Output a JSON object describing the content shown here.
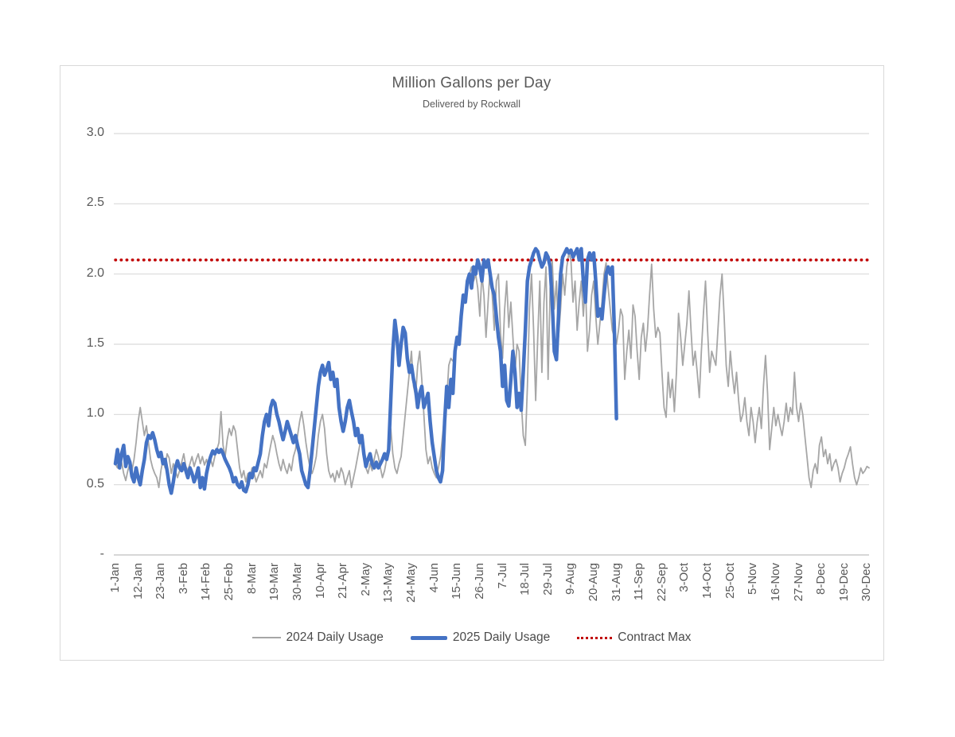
{
  "chart_data": {
    "type": "line",
    "title": "Million Gallons per Day",
    "subtitle": "Delivered by Rockwall",
    "x_unit": "day_of_year",
    "x_range_days": [
      1,
      365
    ],
    "ylim": [
      0,
      3.0
    ],
    "grid": "horizontal",
    "legend_position": "bottom",
    "style": {
      "text_color": "#595959",
      "grid_color": "#D9D9D9",
      "axis_color": "#BFBFBF",
      "frame_border": "#D9D9D9",
      "legend_text": "#4a4a4a"
    },
    "ytick_labels": [
      "3.0",
      "2.5",
      "2.0",
      "1.5",
      "1.0",
      "0.5",
      "-"
    ],
    "ytick_values": [
      3.0,
      2.5,
      2.0,
      1.5,
      1.0,
      0.5,
      0
    ],
    "xtick_labels": [
      "1-Jan",
      "12-Jan",
      "23-Jan",
      "3-Feb",
      "14-Feb",
      "25-Feb",
      "8-Mar",
      "19-Mar",
      "30-Mar",
      "10-Apr",
      "21-Apr",
      "2-May",
      "13-May",
      "24-May",
      "4-Jun",
      "15-Jun",
      "26-Jun",
      "7-Jul",
      "18-Jul",
      "29-Jul",
      "9-Aug",
      "20-Aug",
      "31-Aug",
      "11-Sep",
      "22-Sep",
      "3-Oct",
      "14-Oct",
      "25-Oct",
      "5-Nov",
      "16-Nov",
      "27-Nov",
      "8-Dec",
      "19-Dec",
      "30-Dec"
    ],
    "xtick_days": [
      1,
      12,
      23,
      34,
      45,
      56,
      67,
      78,
      89,
      100,
      111,
      122,
      133,
      144,
      155,
      166,
      177,
      188,
      199,
      210,
      221,
      232,
      243,
      254,
      265,
      276,
      287,
      298,
      309,
      320,
      331,
      342,
      353,
      364
    ],
    "contract_max": {
      "name": "Contract Max",
      "value": 2.1,
      "color": "#C00000",
      "style": "dotted"
    },
    "series": [
      {
        "name": "2024 Daily Usage",
        "color": "#A6A6A6",
        "stroke_width": 1.8,
        "start_day": 1,
        "values": [
          0.65,
          0.62,
          0.7,
          0.66,
          0.58,
          0.53,
          0.6,
          0.65,
          0.6,
          0.68,
          0.8,
          0.95,
          1.05,
          0.95,
          0.85,
          0.92,
          0.8,
          0.68,
          0.62,
          0.58,
          0.55,
          0.48,
          0.6,
          0.68,
          0.62,
          0.72,
          0.69,
          0.58,
          0.65,
          0.6,
          0.55,
          0.6,
          0.66,
          0.72,
          0.63,
          0.6,
          0.65,
          0.7,
          0.63,
          0.68,
          0.72,
          0.65,
          0.7,
          0.64,
          0.68,
          0.62,
          0.68,
          0.63,
          0.7,
          0.75,
          0.8,
          1.02,
          0.78,
          0.7,
          0.82,
          0.9,
          0.85,
          0.92,
          0.88,
          0.75,
          0.62,
          0.55,
          0.6,
          0.52,
          0.58,
          0.55,
          0.62,
          0.58,
          0.52,
          0.56,
          0.6,
          0.55,
          0.65,
          0.62,
          0.7,
          0.78,
          0.85,
          0.8,
          0.72,
          0.65,
          0.6,
          0.68,
          0.62,
          0.58,
          0.65,
          0.6,
          0.7,
          0.75,
          0.85,
          0.95,
          1.02,
          0.92,
          0.8,
          0.7,
          0.62,
          0.58,
          0.63,
          0.7,
          0.85,
          0.95,
          1.0,
          0.9,
          0.72,
          0.6,
          0.55,
          0.58,
          0.52,
          0.6,
          0.55,
          0.62,
          0.58,
          0.5,
          0.55,
          0.6,
          0.48,
          0.55,
          0.62,
          0.7,
          0.78,
          0.84,
          0.75,
          0.62,
          0.58,
          0.65,
          0.6,
          0.68,
          0.75,
          0.7,
          0.62,
          0.55,
          0.6,
          0.68,
          0.78,
          0.9,
          0.72,
          0.62,
          0.58,
          0.65,
          0.7,
          0.85,
          1.0,
          1.15,
          1.3,
          1.45,
          1.2,
          1.13,
          1.35,
          1.45,
          1.25,
          1.0,
          0.75,
          0.65,
          0.7,
          0.62,
          0.58,
          0.55,
          0.62,
          0.7,
          0.85,
          1.0,
          1.1,
          1.35,
          1.4,
          1.38,
          1.42,
          1.5,
          1.6,
          1.75,
          1.85,
          1.8,
          1.95,
          2.0,
          2.05,
          1.95,
          2.0,
          1.9,
          1.7,
          2.0,
          1.85,
          1.55,
          1.8,
          2.05,
          1.85,
          1.6,
          1.95,
          2.0,
          1.58,
          1.4,
          1.75,
          1.95,
          1.62,
          1.8,
          1.55,
          1.3,
          1.5,
          1.45,
          1.1,
          0.85,
          0.78,
          1.2,
          1.75,
          2.0,
          1.6,
          1.1,
          1.55,
          1.95,
          1.3,
          1.8,
          2.05,
          1.25,
          1.9,
          2.1,
          1.75,
          1.95,
          1.55,
          1.75,
          2.0,
          1.85,
          2.05,
          2.15,
          2.1,
          1.8,
          1.95,
          1.6,
          1.8,
          1.95,
          1.7,
          1.95,
          1.45,
          1.6,
          1.85,
          1.95,
          1.7,
          1.5,
          1.65,
          1.8,
          2.0,
          2.08,
          1.9,
          1.75,
          1.6,
          1.55,
          1.5,
          1.6,
          1.75,
          1.7,
          1.25,
          1.45,
          1.6,
          1.4,
          1.78,
          1.7,
          1.45,
          1.25,
          1.55,
          1.65,
          1.45,
          1.6,
          1.85,
          2.07,
          1.75,
          1.55,
          1.62,
          1.58,
          1.3,
          1.05,
          0.98,
          1.3,
          1.12,
          1.25,
          1.02,
          1.3,
          1.72,
          1.55,
          1.35,
          1.5,
          1.65,
          1.88,
          1.6,
          1.35,
          1.45,
          1.3,
          1.12,
          1.45,
          1.72,
          1.95,
          1.6,
          1.3,
          1.45,
          1.4,
          1.35,
          1.6,
          1.85,
          2.0,
          1.7,
          1.35,
          1.2,
          1.45,
          1.28,
          1.15,
          1.3,
          1.1,
          0.95,
          1.0,
          1.12,
          0.95,
          0.85,
          1.05,
          0.95,
          0.8,
          0.95,
          1.05,
          0.9,
          1.2,
          1.42,
          1.15,
          0.75,
          0.9,
          1.05,
          0.92,
          1.0,
          0.92,
          0.85,
          0.95,
          1.08,
          0.95,
          1.05,
          1.0,
          1.3,
          1.05,
          0.95,
          1.08,
          1.0,
          0.85,
          0.7,
          0.55,
          0.48,
          0.6,
          0.65,
          0.58,
          0.78,
          0.84,
          0.7,
          0.75,
          0.65,
          0.72,
          0.6,
          0.65,
          0.68,
          0.62,
          0.52,
          0.58,
          0.62,
          0.68,
          0.72,
          0.77,
          0.65,
          0.55,
          0.5,
          0.55,
          0.62,
          0.58,
          0.6,
          0.63,
          0.62
        ]
      },
      {
        "name": "2025 Daily Usage",
        "color": "#4472C4",
        "stroke_width": 4.5,
        "start_day": 1,
        "values": [
          0.65,
          0.75,
          0.62,
          0.72,
          0.78,
          0.63,
          0.7,
          0.66,
          0.56,
          0.52,
          0.62,
          0.55,
          0.5,
          0.6,
          0.68,
          0.8,
          0.85,
          0.83,
          0.87,
          0.82,
          0.75,
          0.7,
          0.73,
          0.65,
          0.68,
          0.6,
          0.5,
          0.44,
          0.52,
          0.62,
          0.67,
          0.62,
          0.6,
          0.65,
          0.6,
          0.55,
          0.62,
          0.58,
          0.52,
          0.56,
          0.62,
          0.48,
          0.55,
          0.47,
          0.58,
          0.65,
          0.7,
          0.74,
          0.72,
          0.75,
          0.73,
          0.75,
          0.72,
          0.68,
          0.65,
          0.62,
          0.58,
          0.52,
          0.55,
          0.5,
          0.48,
          0.52,
          0.46,
          0.45,
          0.5,
          0.58,
          0.55,
          0.62,
          0.6,
          0.66,
          0.72,
          0.85,
          0.95,
          1.0,
          0.92,
          1.05,
          1.1,
          1.08,
          1.0,
          0.95,
          0.88,
          0.82,
          0.88,
          0.95,
          0.9,
          0.85,
          0.8,
          0.85,
          0.78,
          0.72,
          0.6,
          0.55,
          0.5,
          0.48,
          0.6,
          0.75,
          0.9,
          1.05,
          1.2,
          1.3,
          1.35,
          1.28,
          1.32,
          1.37,
          1.25,
          1.3,
          1.2,
          1.25,
          1.05,
          0.95,
          0.88,
          0.95,
          1.05,
          1.1,
          1.02,
          0.95,
          0.85,
          0.9,
          0.8,
          0.85,
          0.72,
          0.63,
          0.68,
          0.72,
          0.65,
          0.62,
          0.66,
          0.62,
          0.65,
          0.68,
          0.72,
          0.68,
          0.75,
          1.1,
          1.45,
          1.67,
          1.55,
          1.35,
          1.5,
          1.62,
          1.58,
          1.4,
          1.3,
          1.35,
          1.25,
          1.18,
          1.05,
          1.15,
          1.2,
          1.05,
          1.1,
          1.15,
          0.95,
          0.8,
          0.7,
          0.6,
          0.55,
          0.52,
          0.6,
          0.95,
          1.2,
          1.05,
          1.25,
          1.15,
          1.45,
          1.55,
          1.5,
          1.7,
          1.85,
          1.8,
          1.95,
          2.0,
          1.9,
          2.05,
          2.0,
          2.1,
          2.05,
          1.95,
          2.1,
          2.05,
          2.1,
          2.0,
          1.9,
          1.85,
          1.7,
          1.55,
          1.45,
          1.2,
          1.35,
          1.1,
          1.06,
          1.25,
          1.45,
          1.3,
          1.05,
          1.15,
          1.03,
          1.3,
          1.6,
          1.95,
          2.05,
          2.1,
          2.15,
          2.18,
          2.16,
          2.1,
          2.05,
          2.08,
          2.15,
          2.12,
          2.05,
          1.8,
          1.45,
          1.39,
          1.7,
          2.0,
          2.12,
          2.15,
          2.18,
          2.15,
          2.17,
          2.12,
          2.15,
          2.18,
          2.1,
          2.18,
          1.95,
          1.8,
          2.1,
          2.15,
          2.1,
          2.15,
          1.95,
          1.7,
          1.75,
          1.68,
          1.85,
          2.0,
          2.05,
          2.0,
          2.05,
          1.6,
          0.97
        ]
      }
    ]
  },
  "legend": {
    "items": [
      {
        "label": "2024 Daily Usage"
      },
      {
        "label": "2025 Daily Usage"
      },
      {
        "label": "Contract Max"
      }
    ]
  }
}
